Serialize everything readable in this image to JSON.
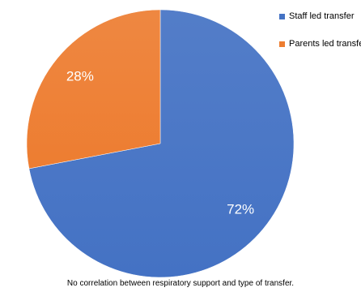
{
  "chart_data": {
    "type": "pie",
    "categories": [
      "Staff led transfer",
      "Parents led transfer"
    ],
    "values": [
      72,
      28
    ],
    "labels": [
      "72%",
      "28%"
    ],
    "colors": [
      "#4472C4",
      "#ED7D31"
    ],
    "legend_position": "top-right",
    "caption": "No correlation between respiratory support and type of transfer."
  },
  "legend": {
    "items": [
      {
        "label": "Staff led transfer",
        "color": "#4472C4"
      },
      {
        "label": "Parents led transfer",
        "color": "#ED7D31"
      }
    ]
  }
}
